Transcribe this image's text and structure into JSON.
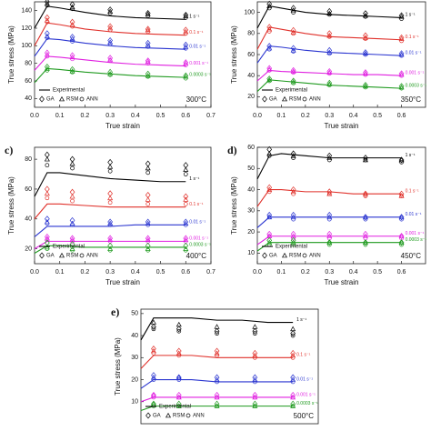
{
  "chart_data": [
    {
      "type": "line",
      "temperature": "300°C",
      "xlabel": "True strain",
      "ylabel": "True stress (MPa)",
      "x": [
        0,
        0.05,
        0.1,
        0.2,
        0.3,
        0.4,
        0.5,
        0.6
      ],
      "marker_x": [
        0.05,
        0.15,
        0.3,
        0.45,
        0.6
      ],
      "xlim": [
        0,
        0.7
      ],
      "xticks": [
        {
          "value": 0,
          "label": "0.0"
        },
        0.1,
        0.2,
        0.3,
        0.4,
        0.5,
        0.6,
        0.7
      ],
      "ylim": [
        30,
        150
      ],
      "yticks": [
        40,
        60,
        80,
        100,
        120,
        140
      ],
      "legend": [
        "Experimental",
        "GA",
        "RSM",
        "ANN"
      ],
      "series": [
        {
          "name": "1 s⁻¹",
          "color": "#000000",
          "values": [
            120,
            145,
            143,
            138,
            134,
            132,
            131,
            130
          ],
          "GA": [
            150,
            147,
            141,
            137,
            135
          ],
          "RSM": [
            148,
            144,
            139,
            136,
            134
          ],
          "ANN": [
            146,
            142,
            137,
            134,
            132
          ]
        },
        {
          "name": "0.1 s⁻¹",
          "color": "#e0302a",
          "values": [
            100,
            126,
            124,
            119,
            116,
            114,
            113,
            112
          ],
          "GA": [
            132,
            127,
            122,
            119,
            118
          ],
          "RSM": [
            129,
            124,
            120,
            118,
            116
          ],
          "ANN": [
            127,
            122,
            118,
            116,
            114
          ]
        },
        {
          "name": "0.01 s⁻¹",
          "color": "#2a35d0",
          "values": [
            88,
            108,
            107,
            103,
            100,
            98,
            97,
            96
          ],
          "GA": [
            114,
            110,
            106,
            103,
            101
          ],
          "RSM": [
            111,
            108,
            104,
            101,
            99
          ],
          "ANN": [
            109,
            105,
            102,
            99,
            97
          ]
        },
        {
          "name": "0.001 s⁻¹",
          "color": "#e020e0",
          "values": [
            72,
            88,
            87,
            84,
            81,
            79,
            78,
            77
          ],
          "GA": [
            92,
            89,
            86,
            83,
            81
          ],
          "RSM": [
            90,
            87,
            84,
            82,
            80
          ],
          "ANN": [
            88,
            85,
            83,
            80,
            78
          ]
        },
        {
          "name": "0.0003 s⁻¹",
          "color": "#1f9a1f",
          "values": [
            58,
            74,
            73,
            70,
            68,
            66,
            65,
            64
          ],
          "GA": [
            76,
            73,
            70,
            68,
            66
          ],
          "RSM": [
            74,
            71,
            68,
            66,
            65
          ],
          "ANN": [
            72,
            70,
            67,
            65,
            63
          ]
        }
      ]
    },
    {
      "type": "line",
      "temperature": "350°C",
      "xlabel": "True strain",
      "ylabel": "True stress (MPa)",
      "x": [
        0,
        0.05,
        0.1,
        0.2,
        0.3,
        0.4,
        0.5,
        0.6
      ],
      "marker_x": [
        0.05,
        0.15,
        0.3,
        0.45,
        0.6
      ],
      "xlim": [
        0,
        0.7
      ],
      "xticks": [
        {
          "value": 0,
          "label": "0.0"
        },
        0.1,
        0.2,
        0.3,
        0.4,
        0.5,
        0.6
      ],
      "ylim": [
        10,
        110
      ],
      "yticks": [
        20,
        40,
        60,
        80,
        100
      ],
      "legend": [
        "Experimental",
        "GA",
        "RSM",
        "ANN"
      ],
      "series": [
        {
          "name": "1 s⁻¹",
          "color": "#000000",
          "values": [
            85,
            106,
            104,
            100,
            98,
            97,
            96,
            95
          ],
          "GA": [
            108,
            104,
            101,
            99,
            97
          ],
          "RSM": [
            106,
            102,
            99,
            97,
            96
          ],
          "ANN": [
            104,
            100,
            98,
            96,
            94
          ]
        },
        {
          "name": "0.1 s⁻¹",
          "color": "#e0302a",
          "values": [
            65,
            86,
            84,
            80,
            77,
            76,
            75,
            74
          ],
          "GA": [
            86,
            83,
            80,
            78,
            76
          ],
          "RSM": [
            84,
            81,
            78,
            76,
            75
          ],
          "ANN": [
            82,
            80,
            77,
            75,
            73
          ]
        },
        {
          "name": "0.01 s⁻¹",
          "color": "#2a35d0",
          "values": [
            52,
            68,
            67,
            64,
            62,
            61,
            60,
            59
          ],
          "GA": [
            68,
            66,
            64,
            62,
            61
          ],
          "RSM": [
            66,
            64,
            62,
            61,
            60
          ],
          "ANN": [
            65,
            63,
            61,
            60,
            59
          ]
        },
        {
          "name": "0.001 s⁻¹",
          "color": "#e020e0",
          "values": [
            35,
            45,
            44,
            43,
            42,
            41,
            41,
            40
          ],
          "GA": [
            47,
            45,
            44,
            43,
            42
          ],
          "RSM": [
            46,
            44,
            43,
            42,
            41
          ],
          "ANN": [
            45,
            43,
            42,
            41,
            40
          ]
        },
        {
          "name": "0.0003 s⁻¹",
          "color": "#1f9a1f",
          "values": [
            25,
            36,
            35,
            33,
            31,
            30,
            29,
            28
          ],
          "GA": [
            37,
            35,
            33,
            31,
            30
          ],
          "RSM": [
            36,
            34,
            32,
            30,
            29
          ],
          "ANN": [
            35,
            33,
            31,
            29,
            28
          ]
        }
      ]
    },
    {
      "type": "line",
      "label": "c)",
      "temperature": "400°C",
      "xlabel": "True strain",
      "ylabel": "True stress (MPa)",
      "x": [
        0,
        0.05,
        0.1,
        0.2,
        0.3,
        0.4,
        0.5,
        0.6
      ],
      "marker_x": [
        0.05,
        0.15,
        0.3,
        0.45,
        0.6
      ],
      "xlim": [
        0,
        0.7
      ],
      "xticks": [
        {
          "value": 0,
          "label": "0.0"
        },
        0.1,
        0.2,
        0.3,
        0.4,
        0.5,
        0.6,
        0.7
      ],
      "ylim": [
        10,
        88
      ],
      "yticks": [
        20,
        40,
        60,
        80
      ],
      "legend": [
        "Experimental",
        "GA",
        "RSM",
        "ANN"
      ],
      "series": [
        {
          "name": "1 s⁻¹",
          "color": "#000000",
          "values": [
            55,
            71,
            71,
            69,
            67,
            66,
            65,
            65
          ],
          "GA": [
            83,
            80,
            78,
            77,
            76
          ],
          "RSM": [
            80,
            77,
            75,
            74,
            73
          ],
          "ANN": [
            76,
            74,
            72,
            71,
            70
          ]
        },
        {
          "name": "0.1 s⁻¹",
          "color": "#e0302a",
          "values": [
            40,
            50,
            50,
            49,
            48,
            48,
            48,
            48
          ],
          "GA": [
            60,
            58,
            57,
            56,
            55
          ],
          "RSM": [
            57,
            55,
            54,
            53,
            53
          ],
          "ANN": [
            54,
            52,
            51,
            50,
            50
          ]
        },
        {
          "name": "0.01 s⁻¹",
          "color": "#2a35d0",
          "values": [
            28,
            35,
            35,
            35,
            35,
            36,
            36,
            36
          ],
          "GA": [
            40,
            39,
            38,
            38,
            38
          ],
          "RSM": [
            38,
            37,
            37,
            37,
            37
          ],
          "ANN": [
            37,
            36,
            36,
            36,
            36
          ]
        },
        {
          "name": "0.001 s⁻¹",
          "color": "#e020e0",
          "values": [
            20,
            25,
            25,
            25,
            25,
            25,
            25,
            25
          ],
          "GA": [
            28,
            27,
            27,
            27,
            27
          ],
          "RSM": [
            27,
            26,
            26,
            26,
            26
          ],
          "ANN": [
            26,
            25,
            25,
            25,
            25
          ]
        },
        {
          "name": "0.0003 s⁻¹",
          "color": "#1f9a1f",
          "values": [
            17,
            22,
            22,
            21,
            21,
            21,
            21,
            21
          ],
          "GA": [
            24,
            23,
            22,
            22,
            22
          ],
          "RSM": [
            21,
            20,
            20,
            20,
            20
          ],
          "ANN": [
            20,
            19,
            19,
            19,
            19
          ]
        }
      ]
    },
    {
      "type": "line",
      "label": "d)",
      "temperature": "450°C",
      "xlabel": "True strain",
      "ylabel": "True stress (MPa)",
      "x": [
        0,
        0.05,
        0.1,
        0.2,
        0.3,
        0.4,
        0.5,
        0.6
      ],
      "marker_x": [
        0.05,
        0.15,
        0.3,
        0.45,
        0.6
      ],
      "xlim": [
        0,
        0.7
      ],
      "xticks": [
        {
          "value": 0,
          "label": "0.0"
        },
        0.1,
        0.2,
        0.3,
        0.4,
        0.5,
        0.6
      ],
      "ylim": [
        5,
        60
      ],
      "yticks": [
        10,
        20,
        30,
        40,
        50,
        60
      ],
      "legend": [
        "Experimental",
        "GA",
        "RSM",
        "ANN"
      ],
      "series": [
        {
          "name": "1 s⁻¹",
          "color": "#000000",
          "values": [
            45,
            56,
            57,
            56,
            55,
            55,
            55,
            55
          ],
          "GA": [
            59,
            57,
            56,
            55,
            54
          ],
          "RSM": [
            57,
            56,
            55,
            54,
            54
          ],
          "ANN": [
            56,
            55,
            54,
            54,
            53
          ]
        },
        {
          "name": "0.1 s⁻¹",
          "color": "#e0302a",
          "values": [
            32,
            40,
            40,
            39,
            39,
            38,
            38,
            38
          ],
          "GA": [
            41,
            40,
            39,
            38,
            38
          ],
          "RSM": [
            40,
            39,
            38,
            38,
            37
          ],
          "ANN": [
            39,
            38,
            38,
            37,
            37
          ]
        },
        {
          "name": "0.01 s⁻¹",
          "color": "#2a35d0",
          "values": [
            22,
            27,
            27,
            27,
            27,
            27,
            27,
            27
          ],
          "GA": [
            28,
            28,
            28,
            27,
            27
          ],
          "RSM": [
            27,
            27,
            27,
            27,
            27
          ],
          "ANN": [
            27,
            26,
            26,
            26,
            26
          ]
        },
        {
          "name": "0.001 s⁻¹",
          "color": "#e020e0",
          "values": [
            14,
            18,
            18,
            18,
            18,
            18,
            18,
            18
          ],
          "GA": [
            19,
            19,
            19,
            19,
            18
          ],
          "RSM": [
            18,
            18,
            18,
            18,
            18
          ],
          "ANN": [
            18,
            17,
            17,
            17,
            17
          ]
        },
        {
          "name": "0.0003 s⁻¹",
          "color": "#1f9a1f",
          "values": [
            11,
            15,
            15,
            15,
            15,
            15,
            15,
            15
          ],
          "GA": [
            16,
            16,
            15,
            15,
            15
          ],
          "RSM": [
            15,
            15,
            15,
            15,
            15
          ],
          "ANN": [
            14,
            14,
            14,
            14,
            14
          ]
        }
      ]
    },
    {
      "type": "line",
      "label": "e)",
      "temperature": "500°C",
      "ylabel": "True stress (MPa)",
      "x": [
        0,
        0.05,
        0.1,
        0.2,
        0.3,
        0.4,
        0.5,
        0.6
      ],
      "marker_x": [
        0.05,
        0.15,
        0.3,
        0.45,
        0.6
      ],
      "xlim": [
        0,
        0.7
      ],
      "ylim": [
        0,
        52
      ],
      "yticks": [
        10,
        20,
        30,
        40,
        50
      ],
      "legend": [
        "Experimental",
        "GA",
        "RSM",
        "ANN"
      ],
      "series": [
        {
          "name": "1 s⁻¹",
          "color": "#000000",
          "values": [
            38,
            48,
            48,
            48,
            47,
            47,
            46,
            46
          ],
          "GA": [
            44,
            43,
            42,
            42,
            41
          ],
          "RSM": [
            46,
            45,
            44,
            44,
            43
          ],
          "ANN": [
            43,
            42,
            41,
            41,
            40
          ]
        },
        {
          "name": "0.1 s⁻¹",
          "color": "#e0302a",
          "values": [
            25,
            31,
            31,
            31,
            30,
            30,
            30,
            30
          ],
          "GA": [
            34,
            33,
            33,
            32,
            32
          ],
          "RSM": [
            33,
            32,
            32,
            31,
            31
          ],
          "ANN": [
            32,
            31,
            31,
            30,
            30
          ]
        },
        {
          "name": "0.01 s⁻¹",
          "color": "#2a35d0",
          "values": [
            16,
            20,
            20,
            20,
            19,
            19,
            19,
            19
          ],
          "GA": [
            22,
            21,
            21,
            21,
            21
          ],
          "RSM": [
            21,
            21,
            20,
            20,
            20
          ],
          "ANN": [
            20,
            20,
            19,
            19,
            19
          ]
        },
        {
          "name": "0.001 s⁻¹",
          "color": "#e020e0",
          "values": [
            10,
            12,
            12,
            12,
            12,
            12,
            12,
            12
          ],
          "GA": [
            13,
            13,
            13,
            13,
            13
          ],
          "RSM": [
            13,
            12,
            12,
            12,
            12
          ],
          "ANN": [
            12,
            12,
            12,
            12,
            12
          ]
        },
        {
          "name": "0.0003 s⁻¹",
          "color": "#1f9a1f",
          "values": [
            6,
            8,
            8,
            8,
            8,
            8,
            8,
            8
          ],
          "GA": [
            9,
            9,
            9,
            9,
            9
          ],
          "RSM": [
            9,
            8,
            8,
            8,
            8
          ],
          "ANN": [
            8,
            8,
            8,
            8,
            8
          ]
        }
      ]
    }
  ]
}
